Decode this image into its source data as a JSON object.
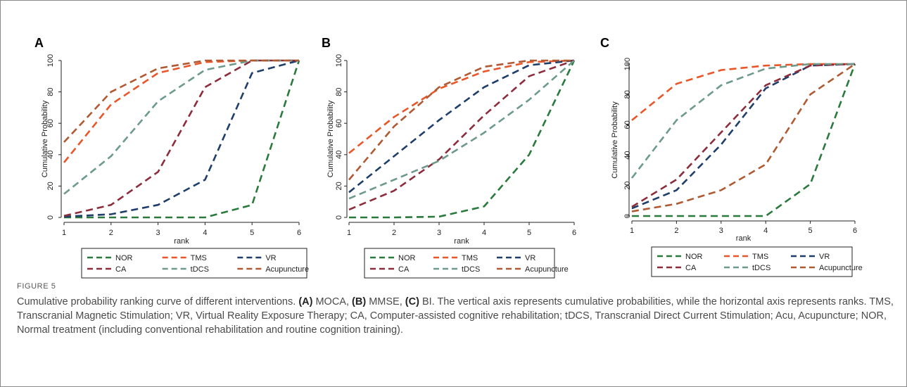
{
  "figure": {
    "label": "FIGURE 5",
    "caption_parts": [
      {
        "text": "Cumulative probability ranking curve of different interventions. ",
        "bold": false
      },
      {
        "text": "(A)",
        "bold": true
      },
      {
        "text": " MOCA, ",
        "bold": false
      },
      {
        "text": "(B)",
        "bold": true
      },
      {
        "text": " MMSE, ",
        "bold": false
      },
      {
        "text": "(C)",
        "bold": true
      },
      {
        "text": " BI. The vertical axis represents cumulative probabilities, while the horizontal axis represents ranks. TMS, Transcranial Magnetic Stimulation; VR, Virtual Reality Exposure Therapy; CA, Computer-assisted cognitive rehabilitation; tDCS, Transcranial Direct Current Stimulation; Acu, Acupuncture; NOR, Normal treatment (including conventional rehabilitation and routine cognition training).",
        "bold": false
      }
    ]
  },
  "colors": {
    "NOR": "#2a7a3e",
    "TMS": "#e8562a",
    "VR": "#1f3f6a",
    "CA": "#8c2d3c",
    "tDCS": "#6e9a8a",
    "Acupuncture": "#b05a34"
  },
  "chart_data": [
    {
      "type": "line",
      "panel_label": "A",
      "xlabel": "rank",
      "ylabel": "Cumulative Probability",
      "xlim": [
        1,
        6
      ],
      "ylim": [
        0,
        100
      ],
      "x_ticks": [
        1,
        2,
        3,
        4,
        5,
        6
      ],
      "y_ticks": [
        0,
        20,
        40,
        60,
        80,
        100
      ],
      "legend_position": "bottom",
      "x": [
        1,
        2,
        3,
        4,
        5,
        6
      ],
      "series": [
        {
          "name": "NOR",
          "values": [
            0,
            0,
            0,
            0,
            8,
            100
          ]
        },
        {
          "name": "TMS",
          "values": [
            35,
            72,
            92,
            99,
            100,
            100
          ]
        },
        {
          "name": "VR",
          "values": [
            0.5,
            2,
            8,
            24,
            92,
            100
          ]
        },
        {
          "name": "CA",
          "values": [
            1,
            8,
            29,
            83,
            100,
            100
          ]
        },
        {
          "name": "tDCS",
          "values": [
            15,
            39,
            74,
            94,
            100,
            100
          ]
        },
        {
          "name": "Acupuncture",
          "values": [
            48,
            80,
            95,
            100,
            100,
            100
          ]
        }
      ]
    },
    {
      "type": "line",
      "panel_label": "B",
      "xlabel": "rank",
      "ylabel": "Cumulative Probability",
      "xlim": [
        1,
        6
      ],
      "ylim": [
        0,
        100
      ],
      "x_ticks": [
        1,
        2,
        3,
        4,
        5,
        6
      ],
      "y_ticks": [
        0,
        20,
        40,
        60,
        80,
        100
      ],
      "legend_position": "bottom",
      "x": [
        1,
        2,
        3,
        4,
        5,
        6
      ],
      "series": [
        {
          "name": "NOR",
          "values": [
            0,
            0,
            0.5,
            7,
            40,
            100
          ]
        },
        {
          "name": "TMS",
          "values": [
            41,
            64,
            82,
            93,
            99,
            100
          ]
        },
        {
          "name": "VR",
          "values": [
            16,
            39,
            62,
            83,
            97,
            100
          ]
        },
        {
          "name": "CA",
          "values": [
            5,
            17,
            37,
            65,
            90,
            100
          ]
        },
        {
          "name": "tDCS",
          "values": [
            12,
            24,
            36,
            54,
            75,
            100
          ]
        },
        {
          "name": "Acupuncture",
          "values": [
            24,
            58,
            83,
            96,
            100,
            100
          ]
        }
      ]
    },
    {
      "type": "line",
      "panel_label": "C",
      "xlabel": "rank",
      "ylabel": "Cumulative Probability",
      "xlim": [
        1,
        6
      ],
      "ylim": [
        0,
        100
      ],
      "x_ticks": [
        1,
        2,
        3,
        4,
        5,
        6
      ],
      "y_ticks": [
        0,
        20,
        40,
        60,
        80,
        100
      ],
      "legend_position": "bottom",
      "x": [
        1,
        2,
        3,
        4,
        5,
        6
      ],
      "series": [
        {
          "name": "NOR",
          "values": [
            0,
            0,
            0,
            0,
            21,
            100
          ]
        },
        {
          "name": "TMS",
          "values": [
            63,
            87,
            96,
            99,
            100,
            100
          ]
        },
        {
          "name": "VR",
          "values": [
            5,
            17,
            47,
            84,
            99,
            100
          ]
        },
        {
          "name": "CA",
          "values": [
            6,
            24,
            55,
            86,
            99,
            100
          ]
        },
        {
          "name": "tDCS",
          "values": [
            25,
            63,
            86,
            97,
            100,
            100
          ]
        },
        {
          "name": "Acupuncture",
          "values": [
            3,
            8,
            17,
            34,
            80,
            100
          ]
        }
      ]
    }
  ]
}
